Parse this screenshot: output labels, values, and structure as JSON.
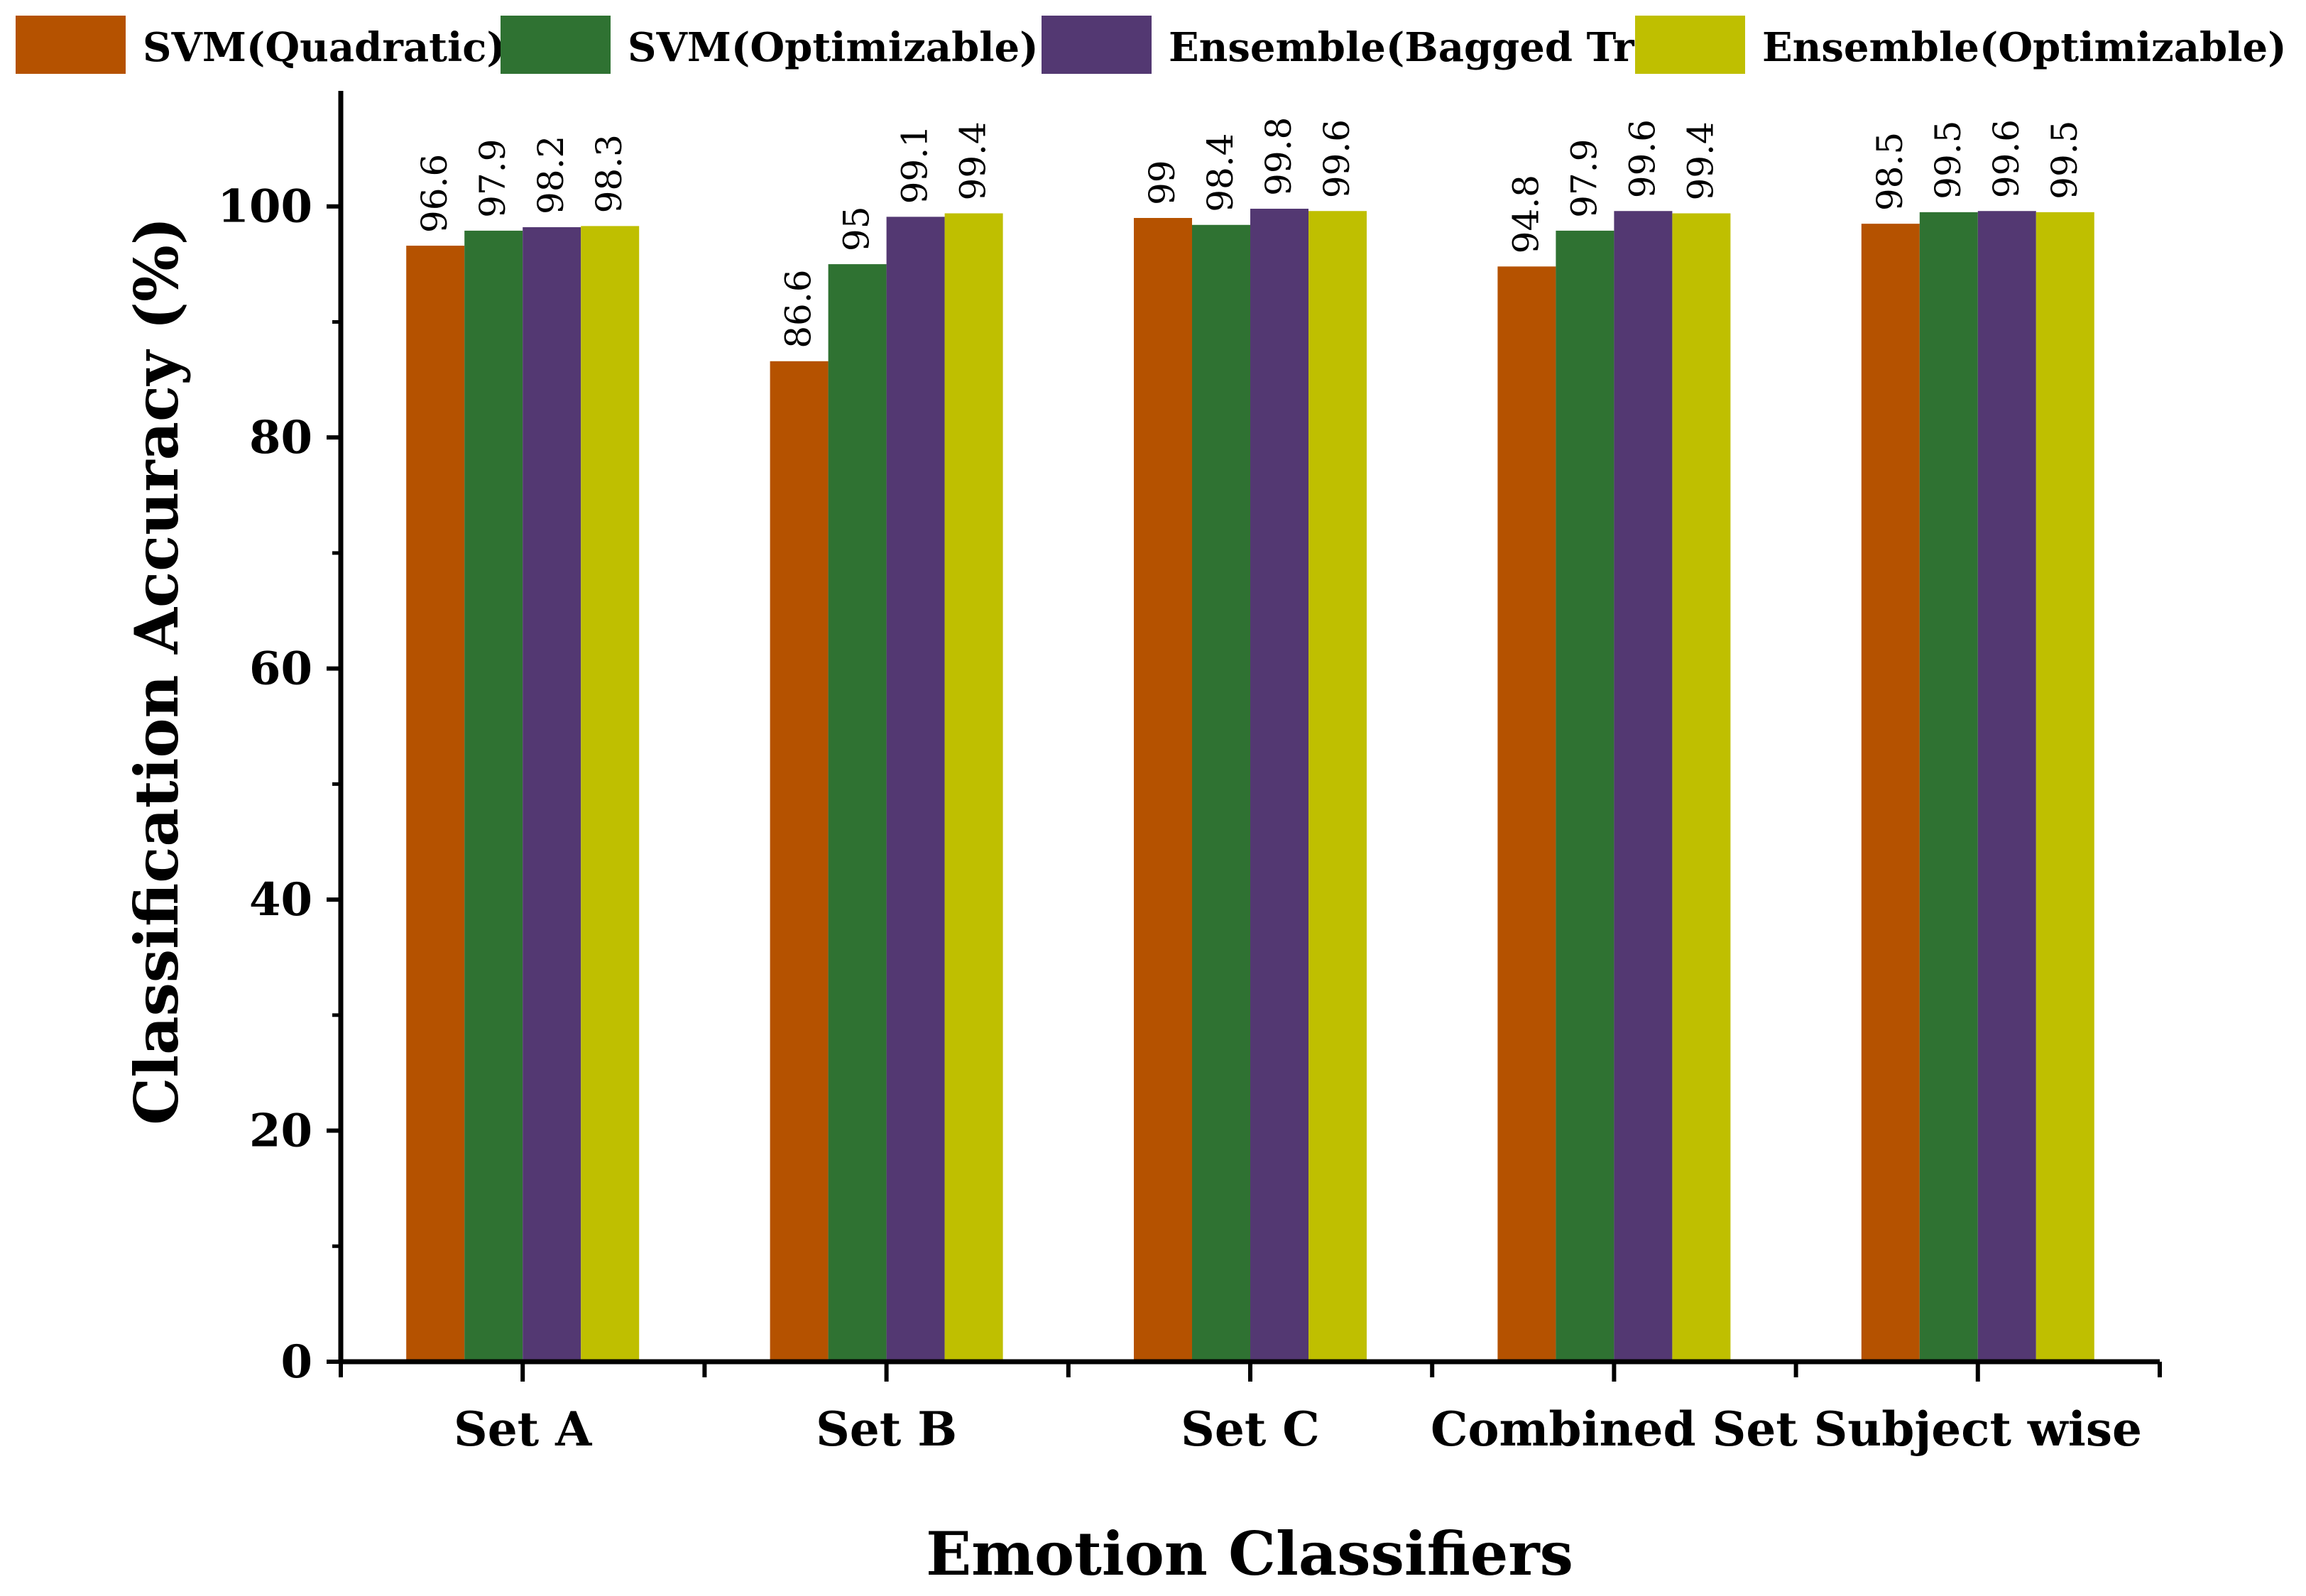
{
  "chart_data": {
    "type": "bar",
    "title": "",
    "xlabel": "Emotion Classifiers",
    "ylabel": "Classification Accuracy (%)",
    "ylim": [
      0,
      110
    ],
    "yticks": [
      0,
      20,
      40,
      60,
      80,
      100
    ],
    "categories": [
      "Set A",
      "Set B",
      "Set C",
      "Combined Set",
      "Subject wise"
    ],
    "legend_position": "top",
    "series": [
      {
        "name": "SVM(Quadratic)",
        "color": "#B55200",
        "values": [
          96.6,
          86.6,
          99,
          94.8,
          98.5
        ]
      },
      {
        "name": "SVM(Optimizable)",
        "color": "#2F7232",
        "values": [
          97.9,
          95,
          98.4,
          97.9,
          99.5
        ]
      },
      {
        "name": "Ensemble(Bagged Tree)",
        "color": "#533872",
        "values": [
          98.2,
          99.1,
          99.8,
          99.6,
          99.6
        ]
      },
      {
        "name": "Ensemble(Optimizable)",
        "color": "#BFBF00",
        "values": [
          98.3,
          99.4,
          99.6,
          99.4,
          99.5
        ]
      }
    ]
  }
}
